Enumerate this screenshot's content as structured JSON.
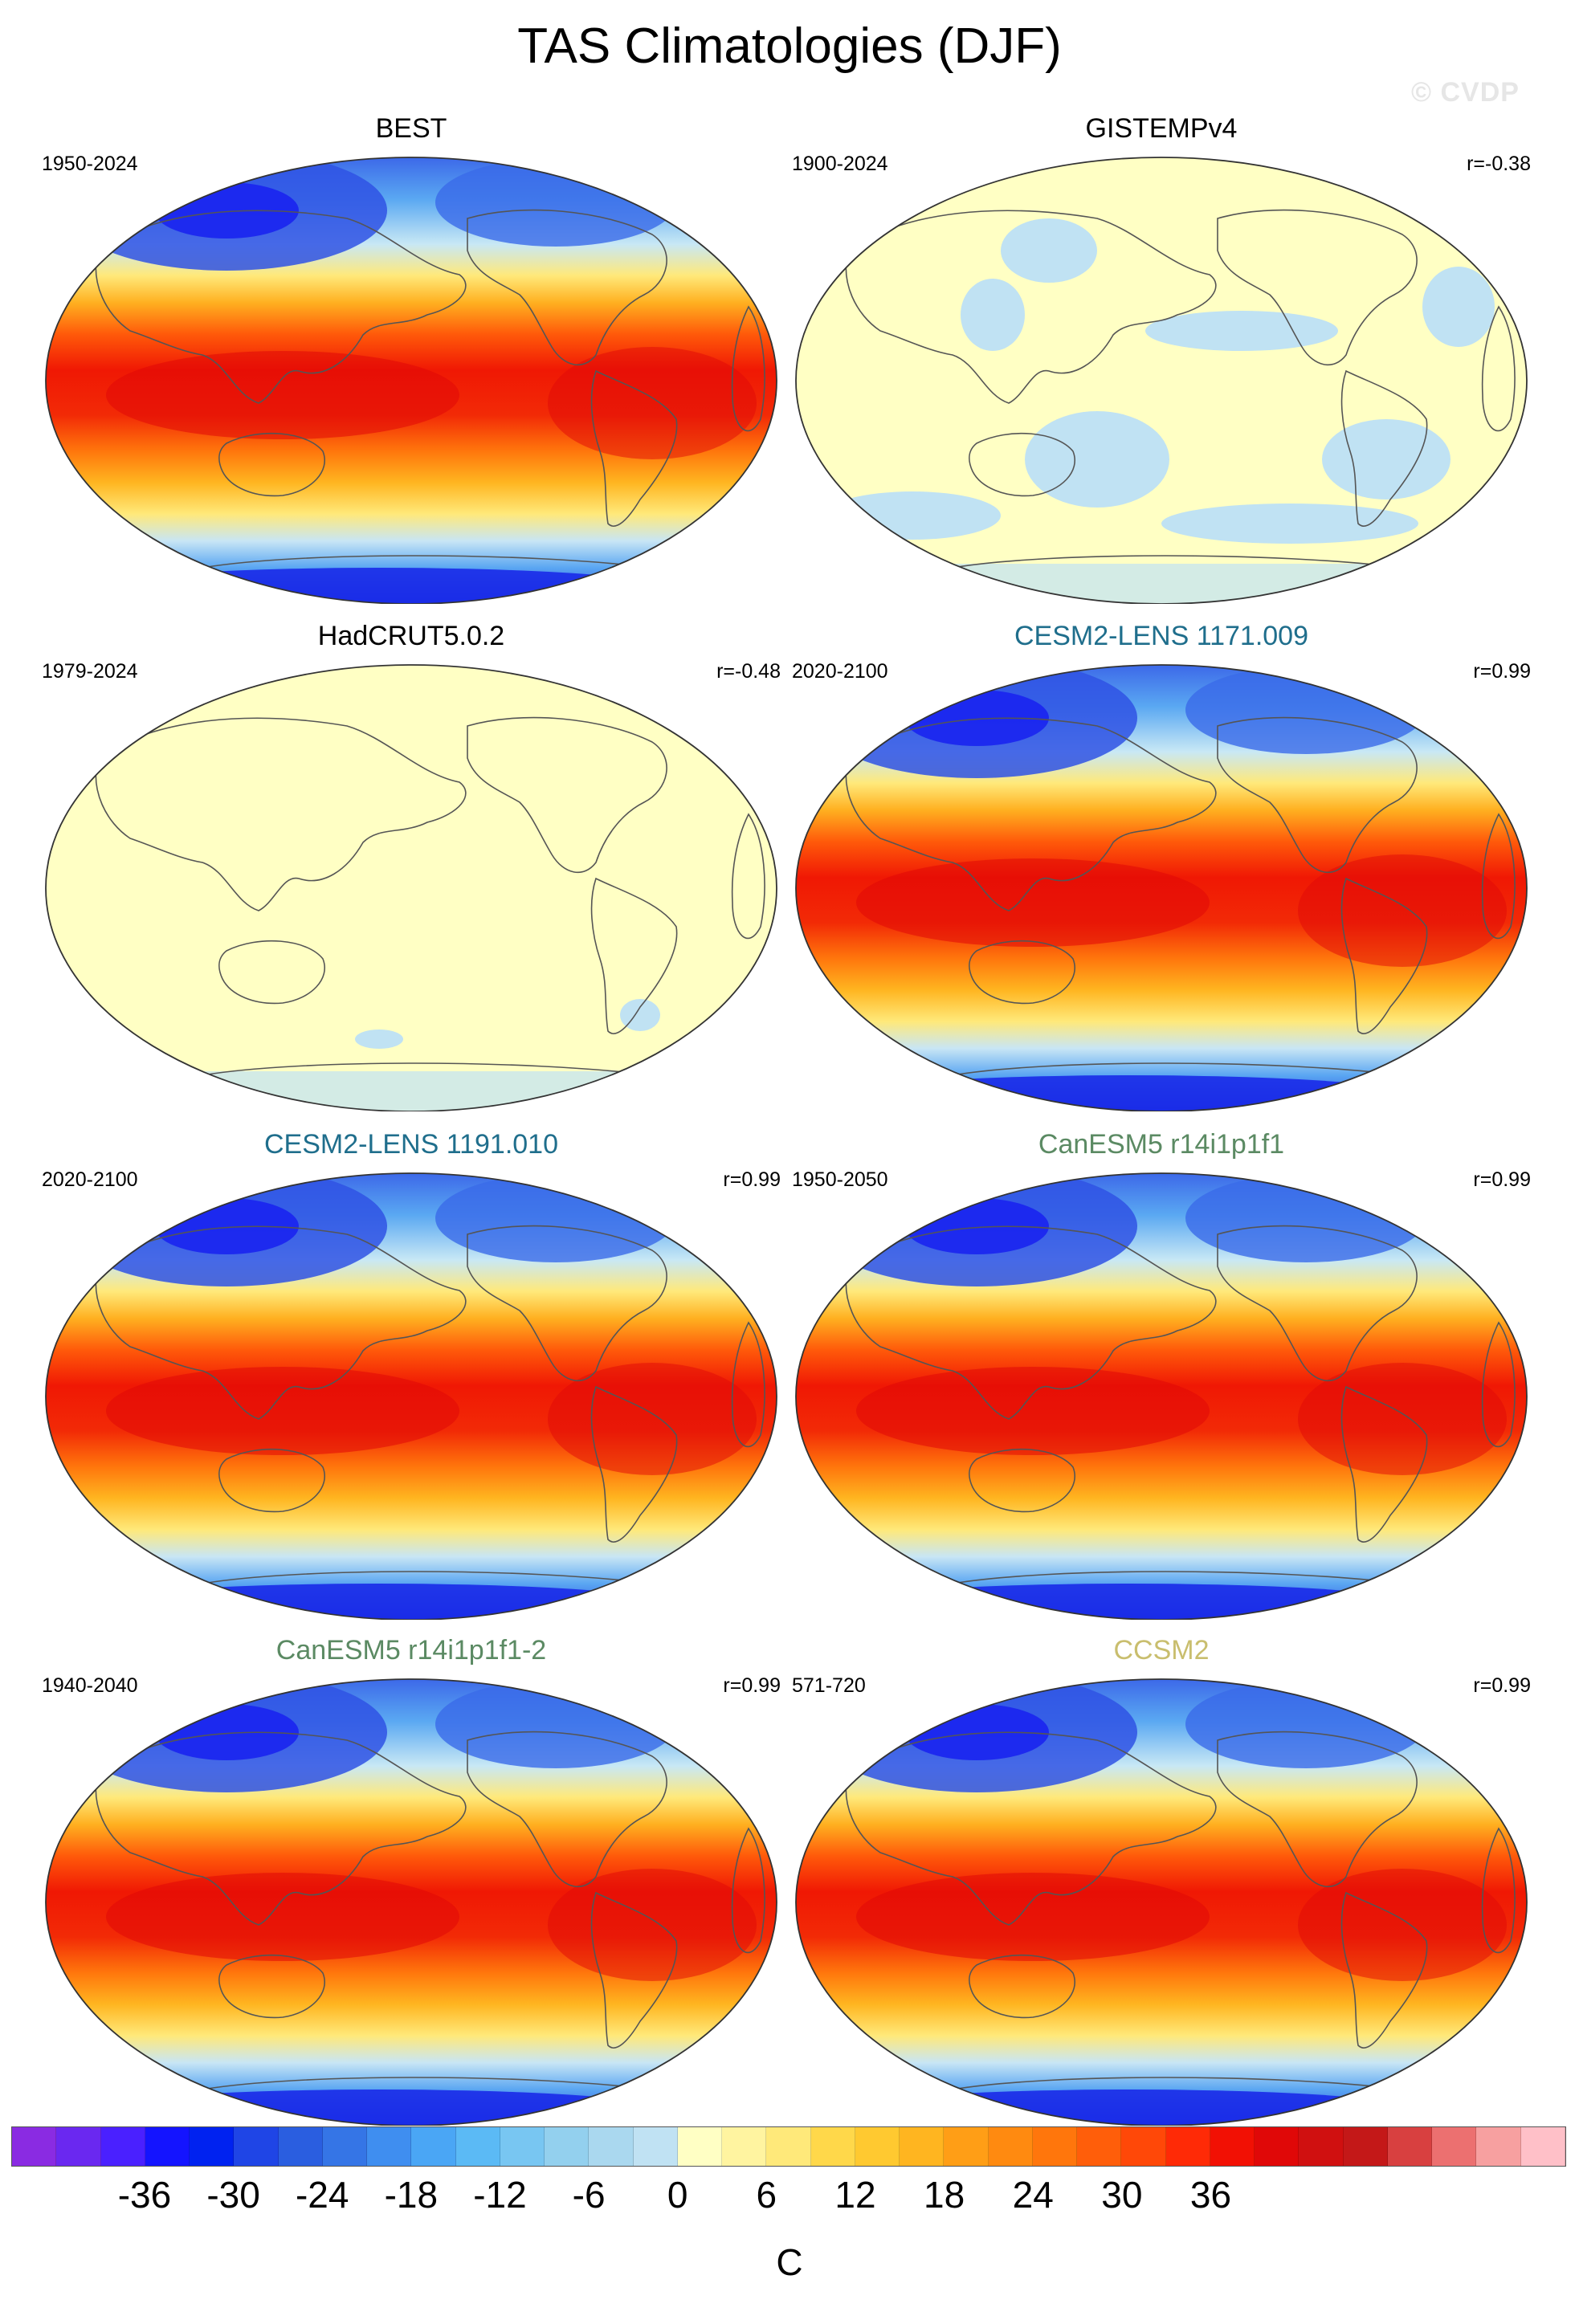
{
  "title": "TAS Climatologies (DJF)",
  "watermark": "© CVDP",
  "panels": [
    {
      "title": "BEST",
      "title_color": "#000000",
      "period": "1950-2024",
      "corr": "",
      "pattern": "full"
    },
    {
      "title": "GISTEMPv4",
      "title_color": "#000000",
      "period": "1900-2024",
      "corr": "r=-0.38",
      "pattern": "flat_patchy"
    },
    {
      "title": "HadCRUT5.0.2",
      "title_color": "#000000",
      "period": "1979-2024",
      "corr": "r=-0.48",
      "pattern": "flat"
    },
    {
      "title": "CESM2-LENS 1171.009",
      "title_color": "#1f6e8c",
      "period": "2020-2100",
      "corr": "r=0.99",
      "pattern": "full"
    },
    {
      "title": "CESM2-LENS 1191.010",
      "title_color": "#1f6e8c",
      "period": "2020-2100",
      "corr": "r=0.99",
      "pattern": "full"
    },
    {
      "title": "CanESM5 r14i1p1f1",
      "title_color": "#5b8a63",
      "period": "1950-2050",
      "corr": "r=0.99",
      "pattern": "full"
    },
    {
      "title": "CanESM5 r14i1p1f1-2",
      "title_color": "#5b8a63",
      "period": "1940-2040",
      "corr": "r=0.99",
      "pattern": "full"
    },
    {
      "title": "CCSM2",
      "title_color": "#c9be6e",
      "period": "571-720",
      "corr": "r=0.99",
      "pattern": "full"
    }
  ],
  "colorbar": {
    "units": "C",
    "colors": [
      "#8a2be2",
      "#6a28f0",
      "#4a20ff",
      "#1414ff",
      "#0022f0",
      "#1f45e6",
      "#2a5ee0",
      "#3575e6",
      "#3f8ef0",
      "#4aa6f5",
      "#5bbaf5",
      "#78c6f2",
      "#93d0ee",
      "#aad8ef",
      "#c0e2f3",
      "#ffffc4",
      "#fff4a0",
      "#ffe97a",
      "#ffd84a",
      "#ffc930",
      "#ffb520",
      "#ff9e16",
      "#ff8a10",
      "#ff760c",
      "#ff5e0a",
      "#ff4808",
      "#ff2a06",
      "#f21004",
      "#e00808",
      "#d01010",
      "#c41818",
      "#d84040",
      "#ec7070",
      "#f7a0a0",
      "#ffc0c8"
    ],
    "ticks": [
      "-36",
      "-30",
      "-24",
      "-18",
      "-12",
      "-6",
      "0",
      "6",
      "12",
      "18",
      "24",
      "30",
      "36"
    ]
  }
}
